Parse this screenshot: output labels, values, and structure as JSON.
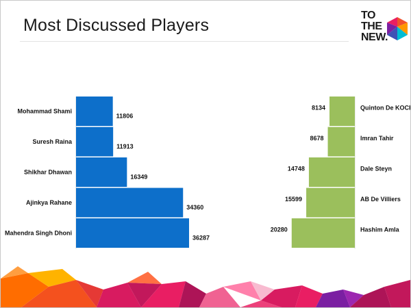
{
  "slide": {
    "title": "Most Discussed Players",
    "logo": {
      "line1": "TO",
      "line2": "THE",
      "line3": "NEW."
    }
  },
  "colors": {
    "left_bar": "#0d6fca",
    "right_bar": "#9bbf5c"
  },
  "chart_data": [
    {
      "type": "bar",
      "orientation": "horizontal",
      "categories": [
        "Mohammad Shami",
        "Suresh Raina",
        "Shikhar Dhawan",
        "Ajinkya Rahane",
        "Mahendra Singh Dhoni"
      ],
      "values": [
        11806,
        11913,
        16349,
        34360,
        36287
      ],
      "data_labels": true,
      "grid": false,
      "color": "#0d6fca"
    },
    {
      "type": "bar",
      "orientation": "horizontal",
      "direction": "right-to-left",
      "categories": [
        "Quinton De KOCK",
        "Imran Tahir",
        "Dale Steyn",
        "AB De Villiers",
        "Hashim Amla"
      ],
      "values": [
        8134,
        8678,
        14748,
        15599,
        20280
      ],
      "data_labels": true,
      "grid": false,
      "color": "#9bbf5c"
    }
  ]
}
